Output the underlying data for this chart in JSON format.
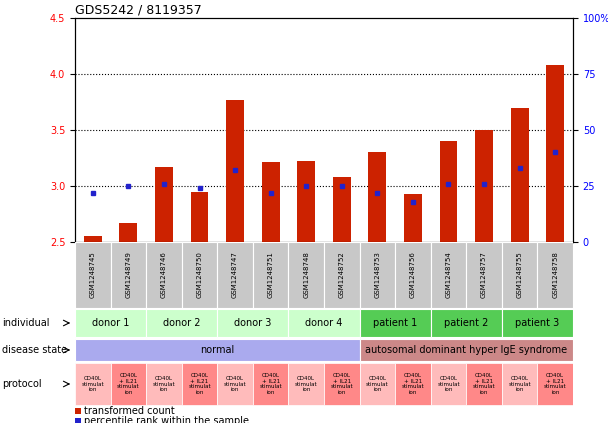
{
  "title": "GDS5242 / 8119357",
  "samples": [
    "GSM1248745",
    "GSM1248749",
    "GSM1248746",
    "GSM1248750",
    "GSM1248747",
    "GSM1248751",
    "GSM1248748",
    "GSM1248752",
    "GSM1248753",
    "GSM1248756",
    "GSM1248754",
    "GSM1248757",
    "GSM1248755",
    "GSM1248758"
  ],
  "transformed_count": [
    2.55,
    2.67,
    3.17,
    2.95,
    3.77,
    3.21,
    3.22,
    3.08,
    3.3,
    2.93,
    3.4,
    3.5,
    3.7,
    4.08
  ],
  "percentile_rank": [
    22,
    25,
    26,
    24,
    32,
    22,
    25,
    25,
    22,
    18,
    26,
    26,
    33,
    40
  ],
  "ylim": [
    2.5,
    4.5
  ],
  "yticks_left": [
    2.5,
    3.0,
    3.5,
    4.0,
    4.5
  ],
  "yticks_right": [
    0,
    25,
    50,
    75,
    100
  ],
  "bar_color": "#cc2200",
  "dot_color": "#2222cc",
  "individuals": [
    {
      "label": "donor 1",
      "start": 0,
      "end": 2,
      "color": "#ccffcc"
    },
    {
      "label": "donor 2",
      "start": 2,
      "end": 4,
      "color": "#ccffcc"
    },
    {
      "label": "donor 3",
      "start": 4,
      "end": 6,
      "color": "#ccffcc"
    },
    {
      "label": "donor 4",
      "start": 6,
      "end": 8,
      "color": "#ccffcc"
    },
    {
      "label": "patient 1",
      "start": 8,
      "end": 10,
      "color": "#55cc55"
    },
    {
      "label": "patient 2",
      "start": 10,
      "end": 12,
      "color": "#55cc55"
    },
    {
      "label": "patient 3",
      "start": 12,
      "end": 14,
      "color": "#55cc55"
    }
  ],
  "disease_states": [
    {
      "label": "normal",
      "start": 0,
      "end": 8,
      "color": "#aaaaee"
    },
    {
      "label": "autosomal dominant hyper IgE syndrome",
      "start": 8,
      "end": 14,
      "color": "#cc8888"
    }
  ],
  "protocols_light": "#ffbbbb",
  "protocols_dark": "#ff8888",
  "legend_items": [
    {
      "color": "#cc2200",
      "label": "transformed count"
    },
    {
      "color": "#2222cc",
      "label": "percentile rank within the sample"
    }
  ],
  "row_labels": [
    "individual",
    "disease state",
    "protocol"
  ],
  "sample_box_color": "#c8c8c8",
  "sample_box_edge": "#ffffff"
}
